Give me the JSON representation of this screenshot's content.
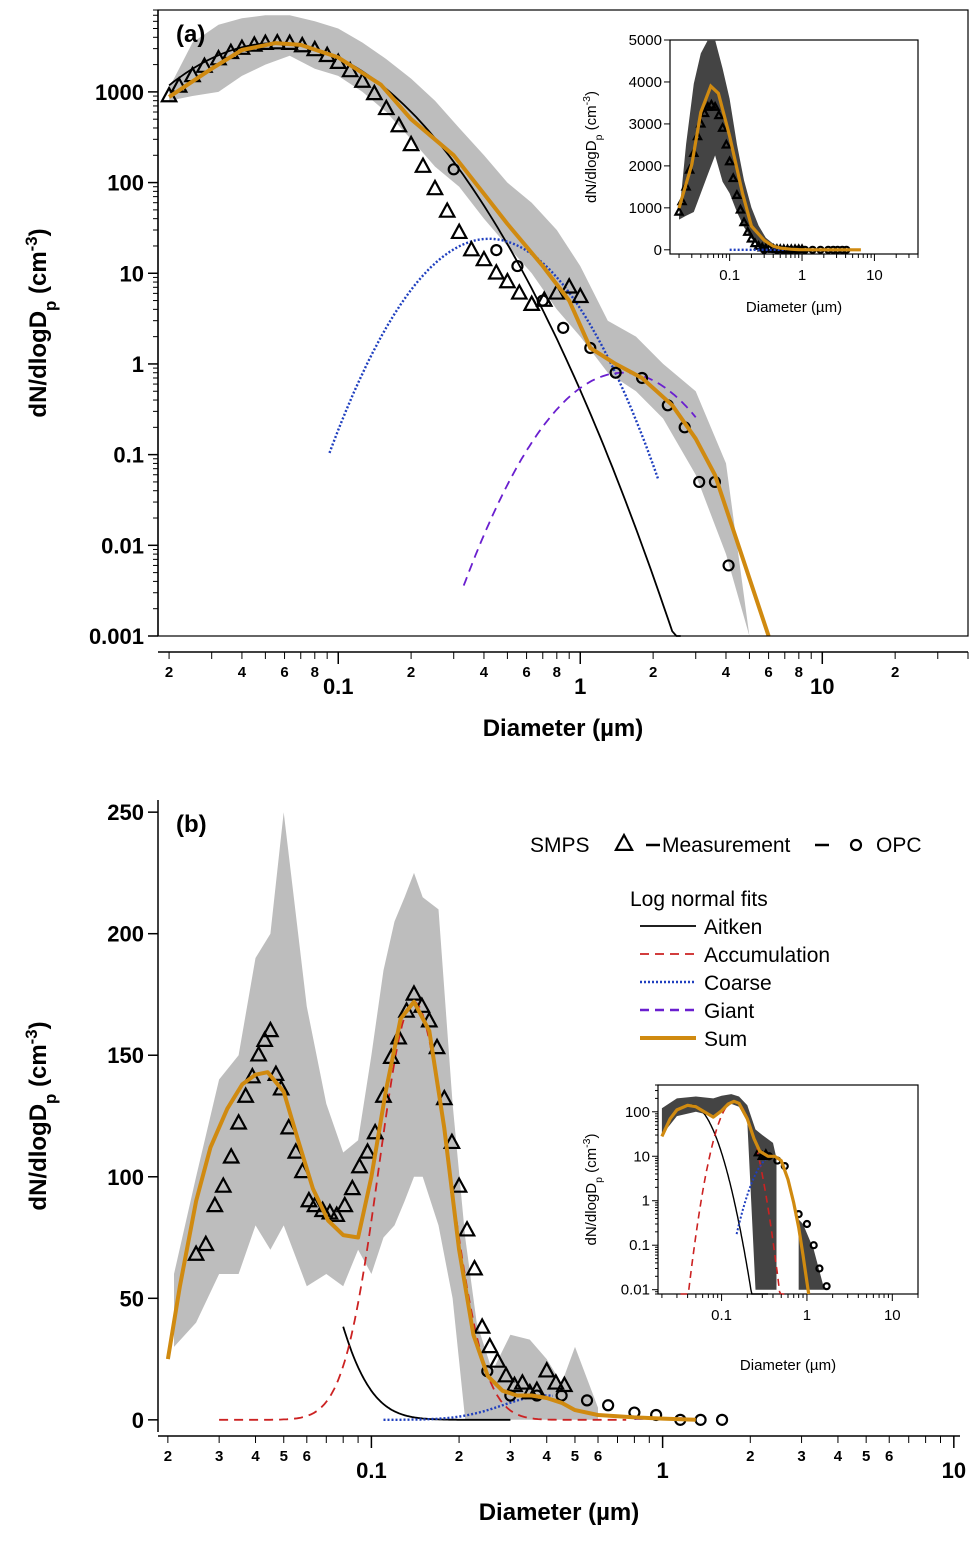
{
  "colors": {
    "aitken": "#000000",
    "accumulation": "#cc2222",
    "coarse": "#1f3fbf",
    "giant": "#6a1fcf",
    "sum": "#d08a10",
    "band_light": "#bdbdbd",
    "band_dark": "#444444"
  },
  "chart_data": [
    {
      "id": "a",
      "type": "line",
      "panel_label": "(a)",
      "xlabel": "Diameter (µm)",
      "ylabel": "dN/dlogD",
      "ylabel_sub": "p",
      "ylabel_unit": " (cm",
      "ylabel_exp": "-3",
      "ylabel_close": ")",
      "x_scale": "log",
      "y_scale": "log",
      "xlim": [
        0.018,
        40
      ],
      "ylim": [
        0.001,
        8000
      ],
      "x_ticks_major": [
        {
          "v": 0.1,
          "label": "0.1"
        },
        {
          "v": 1,
          "label": "1"
        },
        {
          "v": 10,
          "label": "10"
        }
      ],
      "x_ticks_minor_labeled": [
        {
          "v": 0.02,
          "label": "2"
        },
        {
          "v": 0.04,
          "label": "4"
        },
        {
          "v": 0.06,
          "label": "6"
        },
        {
          "v": 0.08,
          "label": "8"
        },
        {
          "v": 0.2,
          "label": "2"
        },
        {
          "v": 0.4,
          "label": "4"
        },
        {
          "v": 0.6,
          "label": "6"
        },
        {
          "v": 0.8,
          "label": "8"
        },
        {
          "v": 2,
          "label": "2"
        },
        {
          "v": 4,
          "label": "4"
        },
        {
          "v": 6,
          "label": "6"
        },
        {
          "v": 8,
          "label": "8"
        },
        {
          "v": 20,
          "label": "2"
        }
      ],
      "y_ticks": [
        {
          "v": 0.001,
          "label": "0.001"
        },
        {
          "v": 0.01,
          "label": "0.01"
        },
        {
          "v": 0.1,
          "label": "0.1"
        },
        {
          "v": 1,
          "label": "1"
        },
        {
          "v": 10,
          "label": "10"
        },
        {
          "v": 100,
          "label": "100"
        },
        {
          "v": 1000,
          "label": "1000"
        }
      ],
      "smps_measurement": {
        "marker": "triangle",
        "x": [
          0.02,
          0.022,
          0.025,
          0.028,
          0.032,
          0.036,
          0.04,
          0.045,
          0.05,
          0.056,
          0.063,
          0.071,
          0.08,
          0.09,
          0.1,
          0.112,
          0.126,
          0.141,
          0.158,
          0.178,
          0.2,
          0.224,
          0.251,
          0.282,
          0.316,
          0.355,
          0.4,
          0.45,
          0.5,
          0.56,
          0.63,
          0.71,
          0.8,
          0.9,
          1.0
        ],
        "y": [
          900,
          1150,
          1500,
          1900,
          2300,
          2700,
          3000,
          3250,
          3400,
          3450,
          3400,
          3200,
          2900,
          2500,
          2100,
          1700,
          1300,
          950,
          650,
          420,
          260,
          150,
          85,
          48,
          28,
          18,
          14,
          10,
          8,
          6,
          4.5,
          5,
          6,
          7,
          5.5
        ]
      },
      "opc_measurement": {
        "marker": "circle",
        "x": [
          0.3,
          0.45,
          0.55,
          0.7,
          0.85,
          1.1,
          1.4,
          1.8,
          2.3,
          2.7,
          3.1,
          3.6,
          4.1
        ],
        "y": [
          140,
          18,
          12,
          5,
          2.5,
          1.5,
          0.8,
          0.7,
          0.35,
          0.2,
          0.05,
          0.05,
          0.006
        ]
      },
      "uncertainty_band": {
        "x": [
          0.02,
          0.025,
          0.032,
          0.04,
          0.05,
          0.063,
          0.08,
          0.1,
          0.126,
          0.158,
          0.2,
          0.251,
          0.316,
          0.4,
          0.5,
          0.63,
          0.8,
          1.0,
          1.3,
          1.7,
          2.2,
          3.0,
          4.0,
          5.0
        ],
        "lower": [
          800,
          900,
          1000,
          1500,
          2000,
          2500,
          1800,
          1500,
          1000,
          600,
          300,
          150,
          90,
          40,
          20,
          10,
          4,
          2,
          0.8,
          0.5,
          0.25,
          0.06,
          0.008,
          0.001
        ],
        "upper": [
          1100,
          3500,
          5500,
          6500,
          7000,
          7000,
          6000,
          5000,
          3500,
          2300,
          1400,
          800,
          400,
          200,
          100,
          60,
          30,
          12,
          3,
          2,
          1,
          0.5,
          0.08,
          0.001
        ]
      },
      "series": [
        {
          "name": "Aitken",
          "style": "solid",
          "color_key": "aitken",
          "mode": 0.055,
          "peak": 3450,
          "sigma_log10": 0.3,
          "range": [
            0.02,
            2.6
          ]
        },
        {
          "name": "Coarse",
          "style": "dotted",
          "color_key": "coarse",
          "mode": 0.42,
          "peak": 24,
          "sigma_log10": 0.2,
          "range": [
            0.092,
            2.1
          ]
        },
        {
          "name": "Giant",
          "style": "dashed",
          "color_key": "giant",
          "mode": 1.5,
          "peak": 0.8,
          "sigma_log10": 0.2,
          "range": [
            0.33,
            3.0
          ]
        },
        {
          "name": "Sum",
          "style": "solid-thick",
          "color_key": "sum",
          "x": [
            0.02,
            0.03,
            0.04,
            0.055,
            0.07,
            0.1,
            0.15,
            0.2,
            0.3,
            0.4,
            0.5,
            0.7,
            0.9,
            1.1,
            1.4,
            1.8,
            2.4,
            3.0,
            3.6,
            4.5,
            6.0
          ],
          "y": [
            880,
            1800,
            2900,
            3450,
            3300,
            2400,
            1200,
            500,
            200,
            75,
            35,
            12,
            5,
            1.5,
            1.0,
            0.7,
            0.35,
            0.15,
            0.06,
            0.01,
            0.001
          ]
        }
      ],
      "inset": {
        "xlabel": "Diameter (µm)",
        "ylabel": "dN/dlogD",
        "ylabel_sub": "p",
        "ylabel_unit": " (cm",
        "ylabel_exp": "-3",
        "ylabel_close": ")",
        "x_scale": "log",
        "y_scale": "linear",
        "xlim": [
          0.015,
          40
        ],
        "ylim": [
          -100,
          5000
        ],
        "x_ticks": [
          {
            "v": 0.1,
            "label": "0.1"
          },
          {
            "v": 1,
            "label": "1"
          },
          {
            "v": 10,
            "label": "10"
          }
        ],
        "y_ticks": [
          {
            "v": 0,
            "label": "0"
          },
          {
            "v": 1000,
            "label": "1000"
          },
          {
            "v": 2000,
            "label": "2000"
          },
          {
            "v": 3000,
            "label": "3000"
          },
          {
            "v": 4000,
            "label": "4000"
          },
          {
            "v": 5000,
            "label": "5000"
          }
        ]
      }
    },
    {
      "id": "b",
      "type": "line",
      "panel_label": "(b)",
      "xlabel": "Diameter (µm)",
      "ylabel": "dN/dlogD",
      "ylabel_sub": "p",
      "ylabel_unit": " (cm",
      "ylabel_exp": "-3",
      "ylabel_close": ")",
      "x_scale": "log",
      "y_scale": "linear",
      "xlim": [
        0.0185,
        10.5
      ],
      "ylim": [
        -5,
        255
      ],
      "x_ticks_major": [
        {
          "v": 0.1,
          "label": "0.1"
        },
        {
          "v": 1,
          "label": "1"
        },
        {
          "v": 10,
          "label": "10"
        }
      ],
      "x_ticks_minor_labeled": [
        {
          "v": 0.02,
          "label": "2"
        },
        {
          "v": 0.03,
          "label": "3"
        },
        {
          "v": 0.04,
          "label": "4"
        },
        {
          "v": 0.05,
          "label": "5"
        },
        {
          "v": 0.06,
          "label": "6"
        },
        {
          "v": 0.2,
          "label": "2"
        },
        {
          "v": 0.3,
          "label": "3"
        },
        {
          "v": 0.4,
          "label": "4"
        },
        {
          "v": 0.5,
          "label": "5"
        },
        {
          "v": 0.6,
          "label": "6"
        },
        {
          "v": 2,
          "label": "2"
        },
        {
          "v": 3,
          "label": "3"
        },
        {
          "v": 4,
          "label": "4"
        },
        {
          "v": 5,
          "label": "5"
        },
        {
          "v": 6,
          "label": "6"
        }
      ],
      "y_ticks": [
        {
          "v": 0,
          "label": "0"
        },
        {
          "v": 50,
          "label": "50"
        },
        {
          "v": 100,
          "label": "100"
        },
        {
          "v": 150,
          "label": "150"
        },
        {
          "v": 200,
          "label": "200"
        },
        {
          "v": 250,
          "label": "250"
        }
      ],
      "smps_measurement": {
        "marker": "triangle",
        "x": [
          0.025,
          0.027,
          0.029,
          0.031,
          0.033,
          0.035,
          0.037,
          0.039,
          0.041,
          0.043,
          0.045,
          0.047,
          0.049,
          0.052,
          0.055,
          0.058,
          0.061,
          0.064,
          0.068,
          0.072,
          0.076,
          0.081,
          0.086,
          0.091,
          0.097,
          0.103,
          0.11,
          0.117,
          0.124,
          0.132,
          0.14,
          0.149,
          0.158,
          0.168,
          0.178,
          0.189,
          0.2,
          0.213,
          0.226,
          0.24,
          0.255,
          0.271,
          0.29,
          0.31,
          0.33,
          0.35,
          0.37,
          0.4,
          0.43,
          0.46
        ],
        "y": [
          68,
          72,
          88,
          96,
          108,
          122,
          133,
          141,
          150,
          156,
          160,
          142,
          136,
          120,
          110,
          102,
          90,
          88,
          86,
          85,
          84,
          88,
          95,
          104,
          110,
          118,
          133,
          149,
          157,
          168,
          175,
          170,
          164,
          153,
          132,
          114,
          96,
          78,
          62,
          38,
          30,
          24,
          18,
          14,
          15,
          11,
          12,
          20,
          15,
          14
        ]
      },
      "opc_measurement": {
        "marker": "circle",
        "x": [
          0.25,
          0.3,
          0.37,
          0.45,
          0.55,
          0.65,
          0.8,
          0.95,
          1.15,
          1.35,
          1.6
        ],
        "y": [
          20,
          10,
          10,
          10,
          8,
          6,
          3,
          2,
          0,
          0,
          0
        ]
      },
      "uncertainty_band": {
        "x": [
          0.021,
          0.025,
          0.03,
          0.035,
          0.04,
          0.045,
          0.05,
          0.06,
          0.07,
          0.08,
          0.09,
          0.1,
          0.11,
          0.12,
          0.13,
          0.14,
          0.15,
          0.17,
          0.19,
          0.21,
          0.23,
          0.26,
          0.3,
          0.35,
          0.4,
          0.45,
          0.5,
          0.6
        ],
        "lower": [
          30,
          40,
          60,
          60,
          80,
          70,
          80,
          55,
          60,
          55,
          70,
          60,
          75,
          80,
          90,
          100,
          100,
          80,
          50,
          0,
          0,
          0,
          0,
          0,
          0,
          0,
          0,
          0
        ],
        "upper": [
          60,
          100,
          140,
          150,
          190,
          200,
          250,
          170,
          130,
          110,
          115,
          150,
          185,
          205,
          215,
          225,
          215,
          210,
          130,
          75,
          40,
          20,
          35,
          33,
          25,
          15,
          30,
          5
        ]
      },
      "series": [
        {
          "name": "Aitken",
          "style": "solid",
          "color_key": "aitken",
          "mode": 0.044,
          "peak": 143,
          "sigma_log10": 0.16,
          "range": [
            0.08,
            0.3
          ]
        },
        {
          "name": "Accumulation",
          "style": "dashed",
          "color_key": "accumulation",
          "mode": 0.14,
          "peak": 172,
          "sigma_log10": 0.12,
          "range": [
            0.03,
            0.75
          ]
        },
        {
          "name": "Coarse",
          "style": "dotted",
          "color_key": "coarse",
          "mode": 0.4,
          "peak": 10,
          "sigma_log10": 0.15,
          "range": [
            0.11,
            0.42
          ]
        },
        {
          "name": "Giant",
          "style": "dashed",
          "color_key": "giant",
          "mode": 1.5,
          "peak": 0.8,
          "sigma_log10": 0.2,
          "range": [
            0.8,
            1.2
          ]
        },
        {
          "name": "Sum",
          "style": "solid-thick",
          "color_key": "sum",
          "x": [
            0.02,
            0.022,
            0.025,
            0.028,
            0.032,
            0.036,
            0.04,
            0.044,
            0.05,
            0.056,
            0.063,
            0.071,
            0.08,
            0.09,
            0.1,
            0.112,
            0.126,
            0.14,
            0.158,
            0.178,
            0.2,
            0.224,
            0.251,
            0.282,
            0.316,
            0.355,
            0.4,
            0.45,
            0.5,
            0.6,
            0.8,
            1.0,
            1.3
          ],
          "y": [
            25,
            55,
            90,
            112,
            128,
            138,
            142,
            143,
            135,
            115,
            95,
            82,
            76,
            75,
            100,
            135,
            165,
            172,
            160,
            120,
            70,
            35,
            18,
            12,
            10,
            10,
            9,
            7,
            4,
            2,
            1,
            0.5,
            0
          ]
        }
      ],
      "legend": {
        "measurement_left": "SMPS",
        "measurement_center": "Measurement",
        "measurement_right": "OPC",
        "fits_title": "Log normal fits",
        "entries": [
          "Aitken",
          "Accumulation",
          "Coarse",
          "Giant",
          "Sum"
        ],
        "placement": "top-right"
      },
      "inset": {
        "xlabel": "Diameter (µm)",
        "ylabel": "dN/dlogD",
        "ylabel_sub": "p",
        "ylabel_unit": " (cm",
        "ylabel_exp": "-3",
        "ylabel_close": ")",
        "x_scale": "log",
        "y_scale": "log",
        "xlim": [
          0.018,
          20
        ],
        "ylim": [
          0.008,
          400
        ],
        "x_ticks": [
          {
            "v": 0.1,
            "label": "0.1"
          },
          {
            "v": 1,
            "label": "1"
          },
          {
            "v": 10,
            "label": "10"
          }
        ],
        "y_ticks": [
          {
            "v": 0.01,
            "label": "0.01"
          },
          {
            "v": 0.1,
            "label": "0.1"
          },
          {
            "v": 1,
            "label": "1"
          },
          {
            "v": 10,
            "label": "10"
          },
          {
            "v": 100,
            "label": "100"
          }
        ]
      }
    }
  ]
}
